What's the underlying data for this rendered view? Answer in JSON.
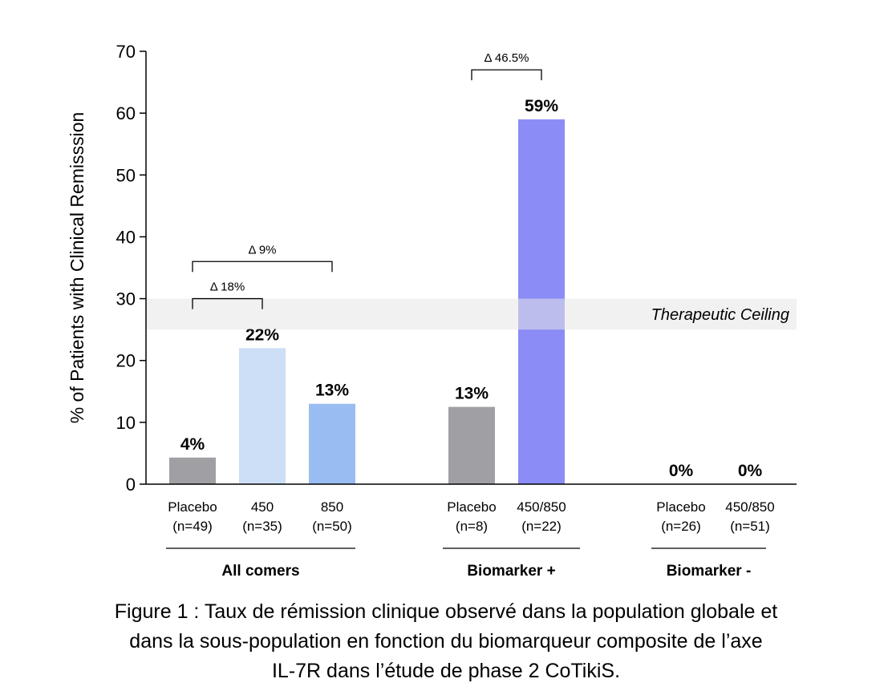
{
  "chart_data": {
    "type": "bar",
    "ylabel": "% of Patients with Clinical Remisssion",
    "ylim": [
      0,
      70
    ],
    "yticks": [
      0,
      10,
      20,
      30,
      40,
      50,
      60,
      70
    ],
    "grid": false,
    "groups": [
      {
        "label": "All comers",
        "bars": [
          {
            "category": "Placebo",
            "n": "(n=49)",
            "value": 4.3,
            "data_label": "4%",
            "color": "#a0a0a4"
          },
          {
            "category": "450",
            "n": "(n=35)",
            "value": 22,
            "data_label": "22%",
            "color": "#cddff6"
          },
          {
            "category": "850",
            "n": "(n=50)",
            "value": 13,
            "data_label": "13%",
            "color": "#99bdf3"
          }
        ]
      },
      {
        "label": "Biomarker +",
        "bars": [
          {
            "category": "Placebo",
            "n": "(n=8)",
            "value": 12.5,
            "data_label": "13%",
            "color": "#a0a0a4"
          },
          {
            "category": "450/850",
            "n": "(n=22)",
            "value": 59,
            "data_label": "59%",
            "color": "#8c8cf6"
          }
        ]
      },
      {
        "label": "Biomarker -",
        "bars": [
          {
            "category": "Placebo",
            "n": "(n=26)",
            "value": 0,
            "data_label": "0%",
            "color": "#a0a0a4"
          },
          {
            "category": "450/850",
            "n": "(n=51)",
            "value": 0,
            "data_label": "0%",
            "color": "#8c8cf6"
          }
        ]
      }
    ],
    "comparisons": [
      {
        "label": "Δ 18%",
        "group": 0,
        "from_bar": 0,
        "to_bar": 1,
        "level": 30
      },
      {
        "label": "Δ 9%",
        "group": 0,
        "from_bar": 0,
        "to_bar": 2,
        "level": 36
      },
      {
        "label": "Δ 46.5%",
        "group": 1,
        "from_bar": 0,
        "to_bar": 1,
        "level": 67
      }
    ],
    "reference_band": {
      "label": "Therapeutic Ceiling",
      "from": 25,
      "to": 30,
      "color": "#e6e6e6"
    }
  },
  "caption": [
    "Figure 1 : Taux de rémission clinique observé dans la population globale et",
    "dans la sous-population en fonction du biomarqueur composite de l’axe",
    "IL-7R dans l’étude de phase 2 CoTikiS."
  ]
}
